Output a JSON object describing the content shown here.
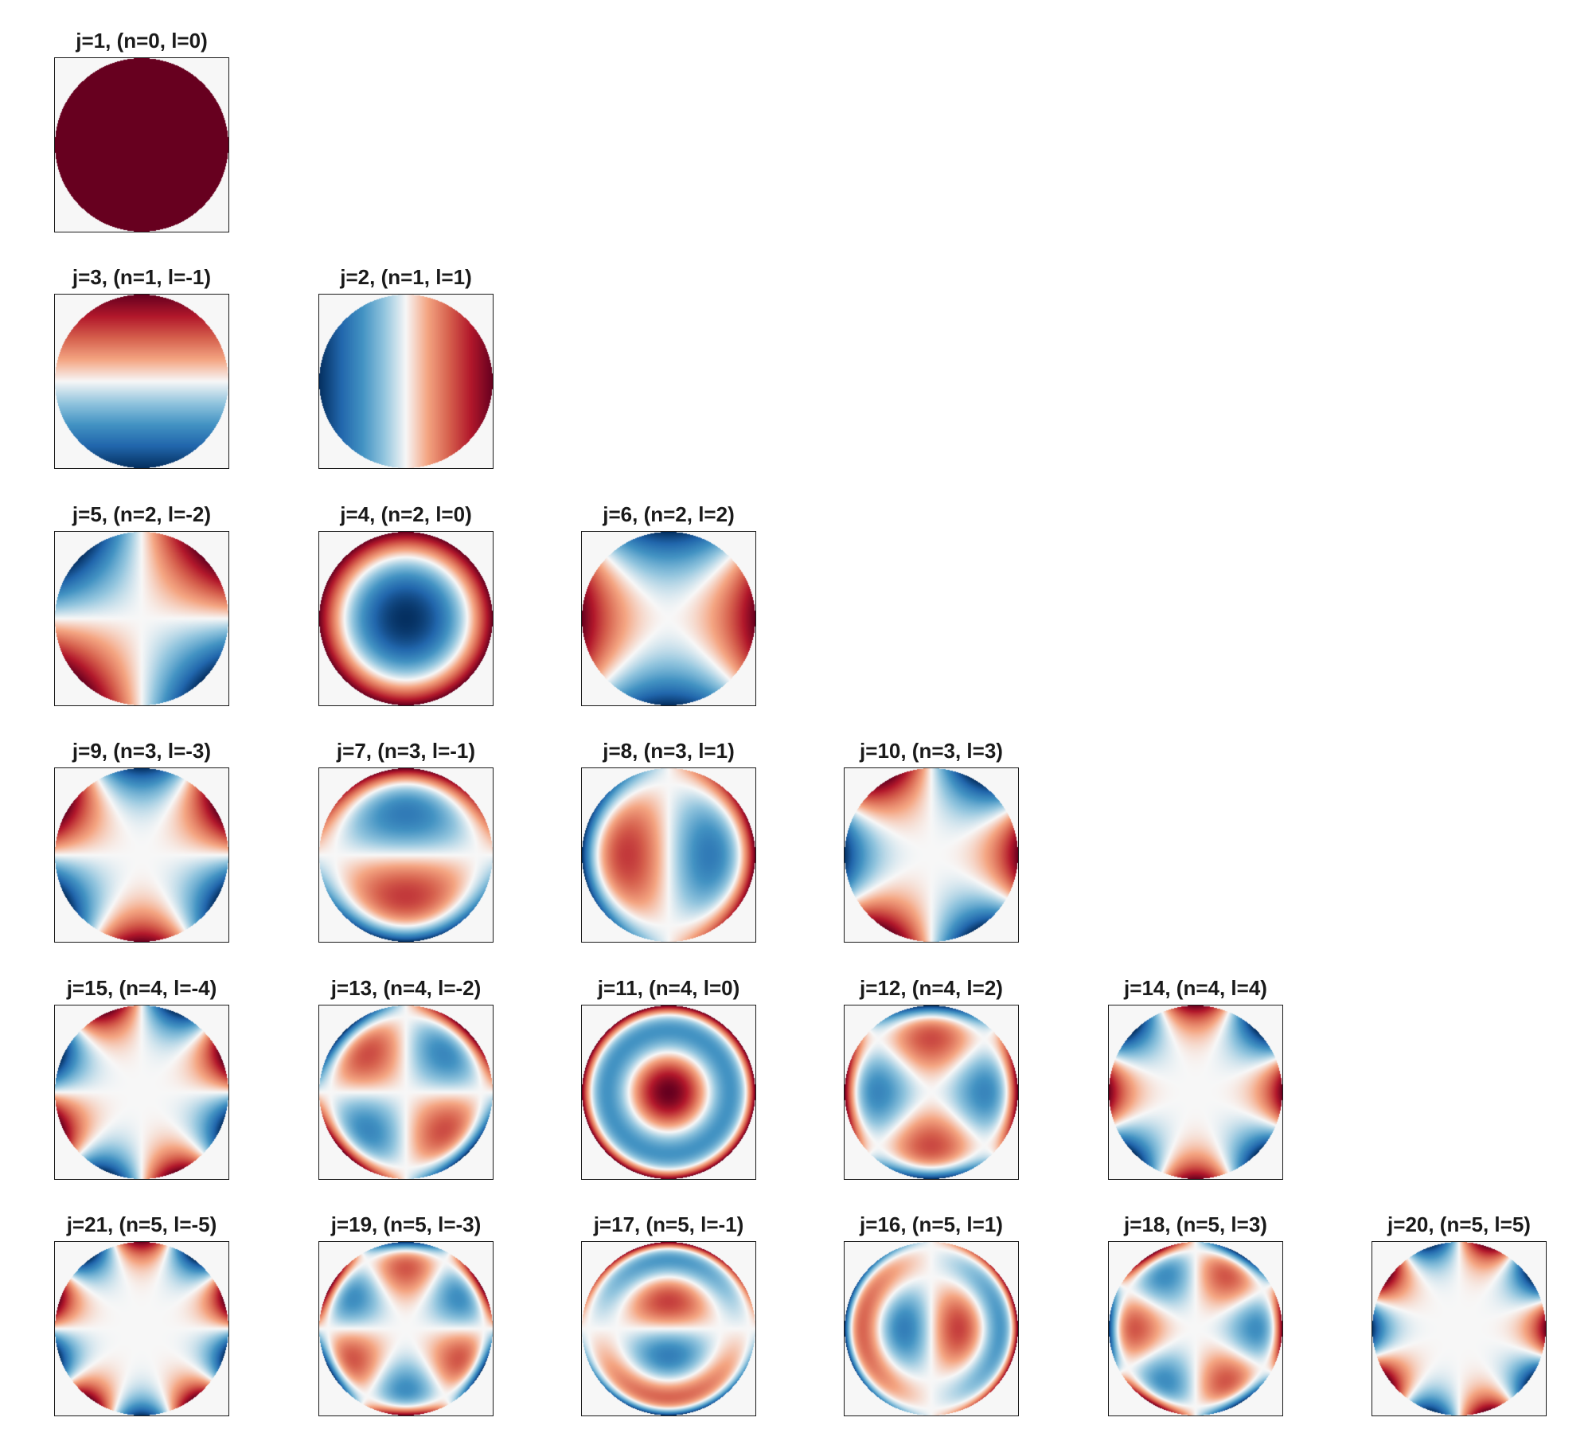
{
  "figure": {
    "colormap": "RdBu_r",
    "background_color": "#f7f7f7",
    "rows": [
      {
        "n": 0,
        "panels": [
          {
            "title": "j=1, (n=0, l=0)",
            "j": 1,
            "n": 0,
            "l": 0
          }
        ]
      },
      {
        "n": 1,
        "panels": [
          {
            "title": "j=3, (n=1, l=-1)",
            "j": 3,
            "n": 1,
            "l": -1
          },
          {
            "title": "j=2, (n=1, l=1)",
            "j": 2,
            "n": 1,
            "l": 1
          }
        ]
      },
      {
        "n": 2,
        "panels": [
          {
            "title": "j=5, (n=2, l=-2)",
            "j": 5,
            "n": 2,
            "l": -2
          },
          {
            "title": "j=4, (n=2, l=0)",
            "j": 4,
            "n": 2,
            "l": 0
          },
          {
            "title": "j=6, (n=2, l=2)",
            "j": 6,
            "n": 2,
            "l": 2
          }
        ]
      },
      {
        "n": 3,
        "panels": [
          {
            "title": "j=9, (n=3, l=-3)",
            "j": 9,
            "n": 3,
            "l": -3
          },
          {
            "title": "j=7, (n=3, l=-1)",
            "j": 7,
            "n": 3,
            "l": -1
          },
          {
            "title": "j=8, (n=3, l=1)",
            "j": 8,
            "n": 3,
            "l": 1
          },
          {
            "title": "j=10, (n=3, l=3)",
            "j": 10,
            "n": 3,
            "l": 3
          }
        ]
      },
      {
        "n": 4,
        "panels": [
          {
            "title": "j=15, (n=4, l=-4)",
            "j": 15,
            "n": 4,
            "l": -4
          },
          {
            "title": "j=13, (n=4, l=-2)",
            "j": 13,
            "n": 4,
            "l": -2
          },
          {
            "title": "j=11, (n=4, l=0)",
            "j": 11,
            "n": 4,
            "l": 0
          },
          {
            "title": "j=12, (n=4, l=2)",
            "j": 12,
            "n": 4,
            "l": 2
          },
          {
            "title": "j=14, (n=4, l=4)",
            "j": 14,
            "n": 4,
            "l": 4
          }
        ]
      },
      {
        "n": 5,
        "panels": [
          {
            "title": "j=21, (n=5, l=-5)",
            "j": 21,
            "n": 5,
            "l": -5
          },
          {
            "title": "j=19, (n=5, l=-3)",
            "j": 19,
            "n": 5,
            "l": -3
          },
          {
            "title": "j=17, (n=5, l=-1)",
            "j": 17,
            "n": 5,
            "l": -1
          },
          {
            "title": "j=16, (n=5, l=1)",
            "j": 16,
            "n": 5,
            "l": 1
          },
          {
            "title": "j=18, (n=5, l=3)",
            "j": 18,
            "n": 5,
            "l": 3
          },
          {
            "title": "j=20, (n=5, l=5)",
            "j": 20,
            "n": 5,
            "l": 5
          }
        ]
      }
    ]
  }
}
